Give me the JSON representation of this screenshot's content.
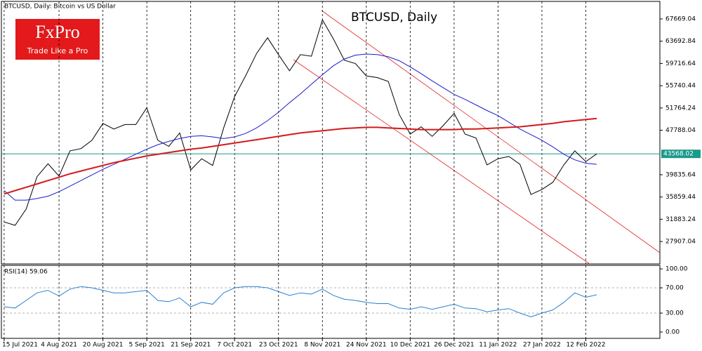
{
  "header": "BTCUSD, Daily:  Bitcoin vs US Dollar",
  "logo": {
    "brand": "FxPro",
    "tagline": "Trade Like a Pro"
  },
  "chart_data": [
    {
      "type": "line",
      "title": "BTCUSD, Daily",
      "x": [
        "2021-07-15",
        "2021-07-19",
        "2021-07-23",
        "2021-07-27",
        "2021-07-31",
        "2021-08-04",
        "2021-08-08",
        "2021-08-12",
        "2021-08-16",
        "2021-08-20",
        "2021-08-24",
        "2021-08-28",
        "2021-09-01",
        "2021-09-05",
        "2021-09-09",
        "2021-09-13",
        "2021-09-17",
        "2021-09-21",
        "2021-09-25",
        "2021-09-29",
        "2021-10-03",
        "2021-10-07",
        "2021-10-11",
        "2021-10-15",
        "2021-10-19",
        "2021-10-23",
        "2021-10-27",
        "2021-10-31",
        "2021-11-04",
        "2021-11-08",
        "2021-11-12",
        "2021-11-16",
        "2021-11-20",
        "2021-11-24",
        "2021-11-28",
        "2021-12-02",
        "2021-12-06",
        "2021-12-10",
        "2021-12-14",
        "2021-12-18",
        "2021-12-22",
        "2021-12-26",
        "2021-12-30",
        "2022-01-03",
        "2022-01-07",
        "2022-01-11",
        "2022-01-15",
        "2022-01-19",
        "2022-01-23",
        "2022-01-27",
        "2022-01-31",
        "2022-02-04",
        "2022-02-08",
        "2022-02-12",
        "2022-02-16"
      ],
      "series": [
        {
          "color": "#000000",
          "values": [
            31400,
            30800,
            33700,
            39500,
            41800,
            39600,
            44100,
            44500,
            46000,
            49000,
            48000,
            48800,
            48800,
            51800,
            46000,
            44900,
            47300,
            40700,
            42700,
            41500,
            48200,
            53800,
            57500,
            61500,
            64300,
            61300,
            58400,
            61300,
            61000,
            67500,
            64100,
            60300,
            59700,
            57500,
            57200,
            56500,
            50600,
            47100,
            48400,
            46700,
            48600,
            50800,
            47100,
            46400,
            41600,
            42700,
            43100,
            41700,
            36300,
            37200,
            38500,
            41600,
            44100,
            42200,
            43568.02
          ]
        },
        {
          "color": "#1c1ccc",
          "values": [
            37000,
            35300,
            35300,
            35600,
            36000,
            36800,
            37800,
            38800,
            39800,
            40800,
            41700,
            42600,
            43500,
            44400,
            45200,
            45800,
            46300,
            46700,
            46800,
            46600,
            46300,
            46600,
            47200,
            48200,
            49500,
            51000,
            52700,
            54300,
            56000,
            57700,
            59300,
            60500,
            61200,
            61400,
            61300,
            60900,
            60200,
            59100,
            57900,
            56600,
            55400,
            54200,
            53300,
            52300,
            51300,
            50400,
            49200,
            48000,
            47000,
            46000,
            44800,
            43500,
            42500,
            41900,
            41700
          ]
        },
        {
          "color": "#d41a1a",
          "values": [
            36400,
            37000,
            37600,
            38200,
            38800,
            39400,
            40000,
            40500,
            41000,
            41500,
            42000,
            42400,
            42800,
            43200,
            43500,
            43800,
            44100,
            44400,
            44600,
            44900,
            45200,
            45500,
            45800,
            46100,
            46400,
            46700,
            47000,
            47300,
            47500,
            47700,
            47900,
            48100,
            48200,
            48300,
            48300,
            48200,
            48100,
            48000,
            47900,
            47900,
            47900,
            47900,
            48000,
            48000,
            48100,
            48200,
            48300,
            48400,
            48600,
            48800,
            49000,
            49300,
            49500,
            49700,
            49900
          ]
        }
      ],
      "current_price": 43568.02,
      "current_price_color": "#1a9a8a",
      "xlim": [
        "2021-07-14",
        "2022-03-11"
      ],
      "ylim": [
        23900,
        70800
      ],
      "yticks": [
        67669.04,
        63692.84,
        59716.64,
        55740.44,
        51764.24,
        47788.04,
        39835.64,
        35859.44,
        31883.24,
        27907.04
      ]
    },
    {
      "type": "line",
      "title": "RSI(14) 59.06",
      "x": [
        "2021-07-15",
        "2021-07-19",
        "2021-07-23",
        "2021-07-27",
        "2021-07-31",
        "2021-08-04",
        "2021-08-08",
        "2021-08-12",
        "2021-08-16",
        "2021-08-20",
        "2021-08-24",
        "2021-08-28",
        "2021-09-01",
        "2021-09-05",
        "2021-09-09",
        "2021-09-13",
        "2021-09-17",
        "2021-09-21",
        "2021-09-25",
        "2021-09-29",
        "2021-10-03",
        "2021-10-07",
        "2021-10-11",
        "2021-10-15",
        "2021-10-19",
        "2021-10-23",
        "2021-10-27",
        "2021-10-31",
        "2021-11-04",
        "2021-11-08",
        "2021-11-12",
        "2021-11-16",
        "2021-11-20",
        "2021-11-24",
        "2021-11-28",
        "2021-12-02",
        "2021-12-06",
        "2021-12-10",
        "2021-12-14",
        "2021-12-18",
        "2021-12-22",
        "2021-12-26",
        "2021-12-30",
        "2022-01-03",
        "2022-01-07",
        "2022-01-11",
        "2022-01-15",
        "2022-01-19",
        "2022-01-23",
        "2022-01-27",
        "2022-01-31",
        "2022-02-04",
        "2022-02-08",
        "2022-02-12",
        "2022-02-16"
      ],
      "series": [
        {
          "color": "#2a7fd4",
          "values": [
            40,
            38,
            50,
            62,
            66,
            57,
            68,
            72,
            70,
            66,
            62,
            62,
            64,
            66,
            50,
            48,
            54,
            40,
            47,
            44,
            62,
            70,
            72,
            72,
            70,
            64,
            58,
            62,
            60,
            68,
            58,
            52,
            50,
            47,
            45,
            45,
            38,
            36,
            40,
            36,
            40,
            44,
            38,
            37,
            32,
            35,
            37,
            30,
            24,
            30,
            35,
            47,
            62,
            55,
            59.06
          ]
        }
      ],
      "xlim": [
        "2021-07-14",
        "2022-03-11"
      ],
      "ylim": [
        -10,
        105.6
      ],
      "yticks": [
        {
          "value": 100,
          "label": "100.00"
        },
        {
          "value": 70,
          "label": "70.00"
        },
        {
          "value": 30,
          "label": "30.00"
        },
        {
          "value": 0,
          "label": "0.00"
        }
      ],
      "xticks": [
        {
          "value": "2021-07-15",
          "label": "15 Jul 2021"
        },
        {
          "value": "2021-08-04",
          "label": "4 Aug 2021"
        },
        {
          "value": "2021-08-20",
          "label": "20 Aug 2021"
        },
        {
          "value": "2021-09-05",
          "label": "5 Sep 2021"
        },
        {
          "value": "2021-09-21",
          "label": "21 Sep 2021"
        },
        {
          "value": "2021-10-07",
          "label": "7 Oct 2021"
        },
        {
          "value": "2021-10-23",
          "label": "23 Oct 2021"
        },
        {
          "value": "2021-11-08",
          "label": "8 Nov 2021"
        },
        {
          "value": "2021-11-24",
          "label": "24 Nov 2021"
        },
        {
          "value": "2021-12-10",
          "label": "10 Dec 2021"
        },
        {
          "value": "2021-12-26",
          "label": "26 Dec 2021"
        },
        {
          "value": "2022-01-11",
          "label": "11 Jan 2022"
        },
        {
          "value": "2022-01-27",
          "label": "27 Jan 2022"
        },
        {
          "value": "2022-02-12",
          "label": "12 Feb 2022"
        }
      ]
    }
  ]
}
